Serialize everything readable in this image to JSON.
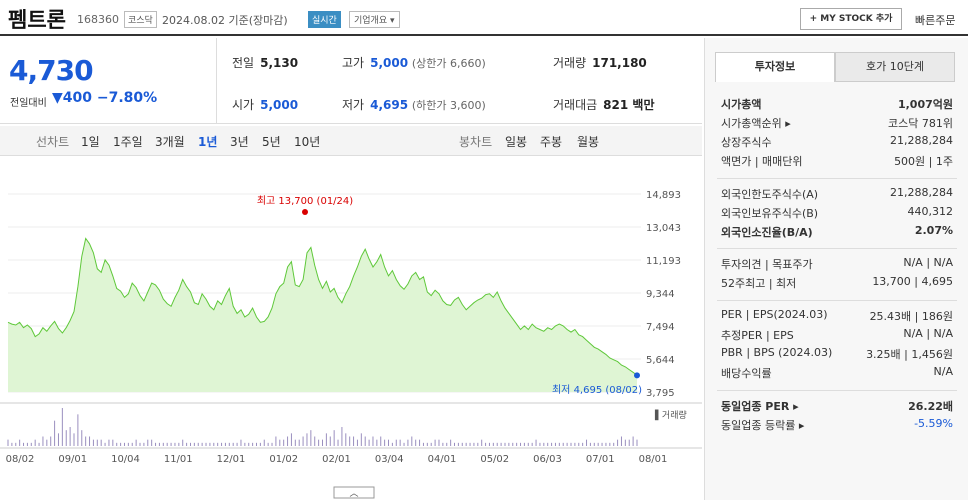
{
  "header": {
    "name": "펨트론",
    "code": "168360",
    "market": "코스닥",
    "date_info": "2024.08.02  기준(장마감)",
    "realtime_label": "실시간",
    "corp_info_label": "기업개요 ▾",
    "mystock_label": "+ MY STOCK 추가",
    "quick_order_label": "빠른주문"
  },
  "summary": {
    "price": "4,730",
    "change_label": "전일대비",
    "change_value": "▼400",
    "change_pct": "−7.80%",
    "prev_label": "전일",
    "prev_value": "5,130",
    "open_label": "시가",
    "open_value": "5,000",
    "high_label": "고가",
    "high_value": "5,000",
    "upper_limit": "(상한가 6,660)",
    "low_label": "저가",
    "low_value": "4,695",
    "lower_limit": "(하한가 3,600)",
    "volume_label": "거래량",
    "volume_value": "171,180",
    "amount_label": "거래대금",
    "amount_value": "821 백만"
  },
  "period_tabs": {
    "line_label": "선차트",
    "items": [
      "1일",
      "1주일",
      "3개월",
      "1년",
      "3년",
      "5년",
      "10년"
    ],
    "selected": "1년",
    "candle_label": "봉차트",
    "candle_items": [
      "일봉",
      "주봉",
      "월봉"
    ]
  },
  "chart_data": {
    "type": "area",
    "x_ticks": [
      "08/02",
      "09/01",
      "10/04",
      "11/01",
      "12/01",
      "01/02",
      "02/01",
      "03/04",
      "04/01",
      "05/02",
      "06/03",
      "07/01",
      "08/01"
    ],
    "y_ticks": [
      "14,893",
      "13,043",
      "11,193",
      "9,344",
      "7,494",
      "5,644",
      "3,795"
    ],
    "ylim": [
      3795,
      14893
    ],
    "values": [
      7700,
      7600,
      7550,
      7700,
      7400,
      7550,
      7350,
      6900,
      7050,
      7400,
      7200,
      7500,
      7750,
      7350,
      7100,
      7400,
      7800,
      8300,
      9700,
      11400,
      12400,
      12100,
      11600,
      10700,
      10500,
      11200,
      10900,
      10300,
      9600,
      9450,
      9100,
      9300,
      9900,
      9650,
      9200,
      8900,
      9400,
      9900,
      9800,
      9500,
      9000,
      8750,
      8600,
      9100,
      9500,
      10100,
      9700,
      9400,
      8800,
      8700,
      9300,
      9000,
      8600,
      8400,
      8900,
      8700,
      9200,
      9600,
      8600,
      8200,
      8400,
      8000,
      8150,
      8500,
      8000,
      7700,
      7750,
      8000,
      8500,
      9300,
      9700,
      9900,
      10800,
      11100,
      9800,
      9700,
      10100,
      11600,
      11900,
      10900,
      10100,
      9600,
      10000,
      9400,
      9600,
      9100,
      8800,
      9300,
      9700,
      10300,
      10800,
      11400,
      11800,
      11250,
      10800,
      11100,
      11500,
      10800,
      10300,
      10600,
      10100,
      9750,
      9550,
      9850,
      10300,
      10500,
      10100,
      10250,
      9400,
      9200,
      9500,
      9300,
      8900,
      8700,
      8650,
      8950,
      9100,
      8700,
      8400,
      8600,
      8800,
      8950,
      9050,
      9250,
      9300,
      9100,
      9400,
      8900,
      8500,
      8200,
      7900,
      7600,
      7300,
      7500,
      7300,
      7600,
      7400,
      7300,
      7200,
      7400,
      7300,
      7500,
      7600,
      7500,
      7300,
      7150,
      7300,
      7000,
      6900,
      6700,
      6500,
      6300,
      6200,
      6050,
      5900,
      5700,
      5600,
      5500,
      5300,
      5200,
      5050,
      4900,
      4730
    ],
    "high_label": "최고 13,700 (01/24)",
    "low_label": "최저 4,695 (08/02)",
    "volume_label": "▌거래량",
    "volume": [
      2,
      1,
      1,
      2,
      1,
      1,
      1,
      2,
      1,
      3,
      2,
      3,
      8,
      4,
      12,
      5,
      6,
      4,
      10,
      5,
      3,
      3,
      2,
      2,
      2,
      1,
      2,
      2,
      1,
      1,
      1,
      1,
      1,
      2,
      1,
      1,
      2,
      2,
      1,
      1,
      1,
      1,
      1,
      1,
      1,
      2,
      1,
      1,
      1,
      1,
      1,
      1,
      1,
      1,
      1,
      1,
      1,
      1,
      1,
      1,
      2,
      1,
      1,
      1,
      1,
      1,
      2,
      1,
      1,
      3,
      2,
      2,
      3,
      4,
      2,
      2,
      3,
      4,
      5,
      3,
      2,
      2,
      4,
      3,
      5,
      2,
      6,
      4,
      3,
      3,
      2,
      4,
      3,
      2,
      3,
      2,
      3,
      2,
      2,
      1,
      2,
      2,
      1,
      2,
      3,
      2,
      2,
      1,
      1,
      1,
      2,
      2,
      1,
      1,
      2,
      1,
      1,
      1,
      1,
      1,
      1,
      1,
      2,
      1,
      1,
      1,
      1,
      1,
      1,
      1,
      1,
      1,
      1,
      1,
      1,
      1,
      2,
      1,
      1,
      1,
      1,
      1,
      1,
      1,
      1,
      1,
      1,
      1,
      1,
      2,
      1,
      1,
      1,
      1,
      1,
      1,
      1,
      2,
      3,
      2,
      2,
      3,
      2
    ]
  },
  "right_panel": {
    "tab_active": "투자정보",
    "tab_inactive": "호가 10단계",
    "group1": [
      {
        "k": "시가총액",
        "v": "1,007억원",
        "bold": true
      },
      {
        "k": "시가총액순위 ▸",
        "v": "코스닥 781위"
      },
      {
        "k": "상장주식수",
        "v": "21,288,284"
      },
      {
        "k": "액면가 | 매매단위",
        "v": "500원 | 1주"
      }
    ],
    "group2": [
      {
        "k": "외국인한도주식수(A)",
        "v": "21,288,284"
      },
      {
        "k": "외국인보유주식수(B)",
        "v": "440,312"
      },
      {
        "k": "외국인소진율(B/A)",
        "v": "2.07%",
        "bold": true
      }
    ],
    "group3": [
      {
        "k": "투자의견 | 목표주가",
        "v": "N/A | N/A"
      },
      {
        "k": "52주최고 | 최저",
        "v": "13,700 | 4,695"
      }
    ],
    "group4": [
      {
        "k": "PER | EPS(2024.03)",
        "v": "25.43배 | 186원"
      },
      {
        "k": "추정PER | EPS",
        "v": "N/A | N/A"
      },
      {
        "k": "PBR | BPS (2024.03)",
        "v": "3.25배 | 1,456원"
      },
      {
        "k": "배당수익률",
        "v": "N/A"
      }
    ],
    "group5": [
      {
        "k": "동일업종 PER ▸",
        "v": "26.22배",
        "bold": true
      },
      {
        "k": "동일업종 등락률 ▸",
        "v": "-5.59%",
        "neg": true
      }
    ]
  },
  "colors": {
    "accent": "#1a5ad6",
    "line": "#5fc83a",
    "fill": "#dff5d4",
    "high_dot": "#d90000",
    "low_dot": "#1a5ad6"
  }
}
